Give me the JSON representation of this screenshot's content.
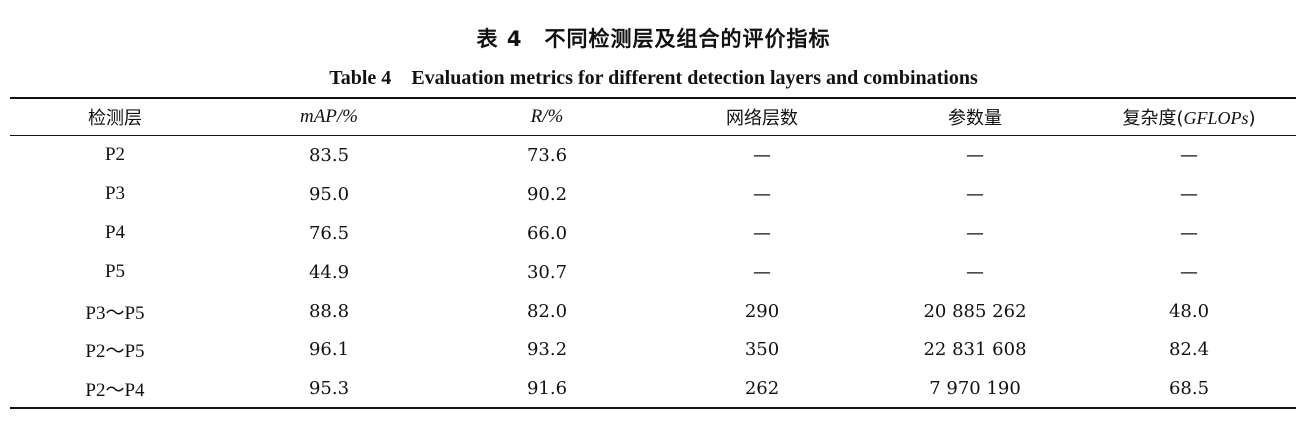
{
  "caption": {
    "zh_number": "表 4",
    "zh_title": "不同检测层及组合的评价指标",
    "en_number": "Table 4",
    "en_title": "Evaluation metrics for different detection layers and combinations"
  },
  "table": {
    "headers": [
      "检测层",
      "mAP/%",
      "R/%",
      "网络层数",
      "参数量",
      "复杂度(GFLOPs)"
    ],
    "header_parts": {
      "complexity_prefix": "复杂度(",
      "complexity_unit": "GFLOPs",
      "complexity_suffix": ")"
    },
    "rows": [
      [
        "P2",
        "83.5",
        "73.6",
        "—",
        "—",
        "—"
      ],
      [
        "P3",
        "95.0",
        "90.2",
        "—",
        "—",
        "—"
      ],
      [
        "P4",
        "76.5",
        "66.0",
        "—",
        "—",
        "—"
      ],
      [
        "P5",
        "44.9",
        "30.7",
        "—",
        "—",
        "—"
      ],
      [
        "P3～P5",
        "88.8",
        "82.0",
        "290",
        "20 885 262",
        "48.0"
      ],
      [
        "P2～P5",
        "96.1",
        "93.2",
        "350",
        "22 831 608",
        "82.4"
      ],
      [
        "P2～P4",
        "95.3",
        "91.6",
        "262",
        "7 970 190",
        "68.5"
      ]
    ]
  }
}
